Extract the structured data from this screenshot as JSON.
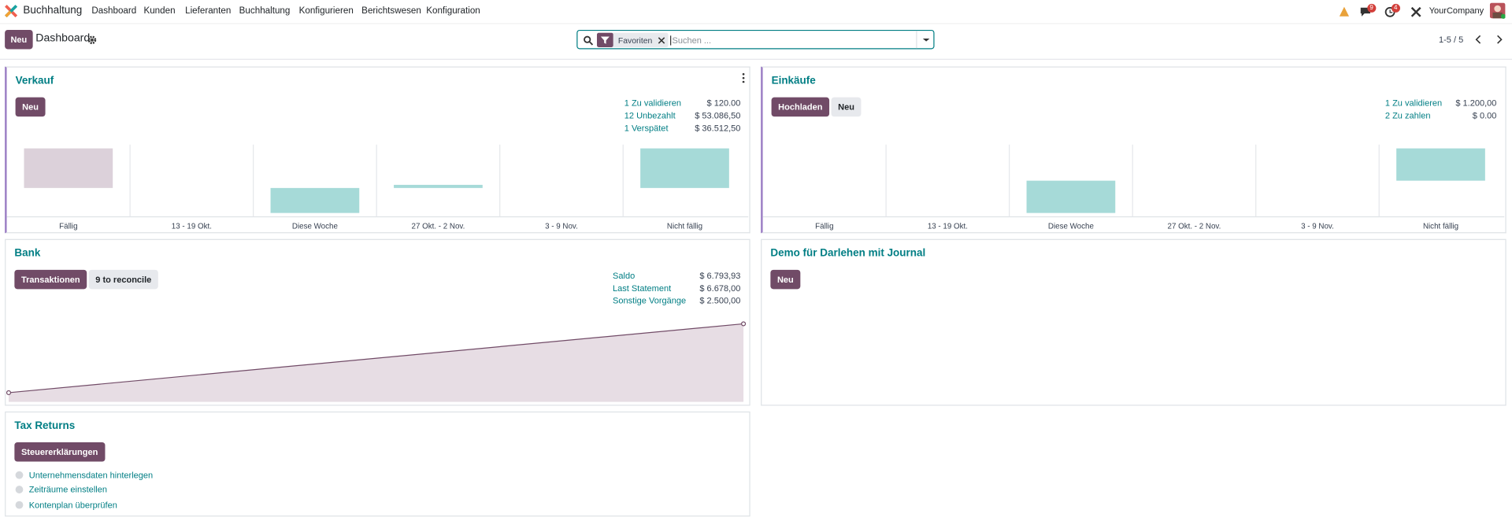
{
  "navbar": {
    "app_name": "Buchhaltung",
    "menu": [
      "Dashboard",
      "Kunden",
      "Lieferanten",
      "Buchhaltung",
      "Konfigurieren",
      "Berichtswesen",
      "Konfiguration"
    ],
    "messages_badge": 9,
    "activities_badge": 4,
    "company": "YourCompany"
  },
  "control_panel": {
    "new_button": "Neu",
    "breadcrumb": "Dashboard",
    "search_facet": "Favoriten",
    "search_placeholder": "Suchen ...",
    "pager": "1-5 / 5"
  },
  "cards": [
    {
      "title": "Verkauf",
      "buttons": [
        "Neu"
      ],
      "stats": [
        {
          "label": "1 Zu validieren",
          "value": "$ 120.00"
        },
        {
          "label": "12 Unbezahlt",
          "value": "$ 53.086,50"
        },
        {
          "label": "1 Verspätet",
          "value": "$ 36.512,50"
        }
      ],
      "chart_data": {
        "type": "bar",
        "categories": [
          "Fällig",
          "13 - 19 Okt.",
          "Diese Woche",
          "27 Okt. - 2 Nov.",
          "3 - 9 Nov.",
          "Nicht fällig"
        ],
        "values": [
          38,
          0,
          -24,
          3,
          0,
          38
        ],
        "colors": [
          "#dcd1da",
          "#a6dad8",
          "#a6dad8",
          "#a6dad8",
          "#a6dad8",
          "#a6dad8"
        ]
      }
    },
    {
      "title": "Einkäufe",
      "buttons": [
        "Hochladen",
        "Neu"
      ],
      "stats": [
        {
          "label": "1 Zu validieren",
          "value": "$ 1.200,00"
        },
        {
          "label": "2 Zu zahlen",
          "value": "$ 0.00"
        }
      ],
      "chart_data": {
        "type": "bar",
        "categories": [
          "Fällig",
          "13 - 19 Okt.",
          "Diese Woche",
          "27 Okt. - 2 Nov.",
          "3 - 9 Nov.",
          "Nicht fällig"
        ],
        "values": [
          0,
          0,
          -32,
          0,
          0,
          32
        ],
        "colors": [
          "#dcd1da",
          "#a6dad8",
          "#a6dad8",
          "#a6dad8",
          "#a6dad8",
          "#a6dad8"
        ]
      }
    },
    {
      "title": "Bank",
      "buttons": [
        "Transaktionen",
        "9 to reconcile"
      ],
      "stats": [
        {
          "label": "Saldo",
          "value": "$ 6.793,93"
        },
        {
          "label": "Last Statement",
          "value": "$ 6.678,00"
        },
        {
          "label": "Sonstige Vorgänge",
          "value": "$ 2.500,00"
        }
      ],
      "chart_data": {
        "type": "line",
        "values": [
          800,
          6800
        ],
        "color": "#714b67",
        "fill": "#e7dde4"
      }
    },
    {
      "title": "Demo für Darlehen mit Journal",
      "buttons": [
        "Neu"
      ]
    },
    {
      "title": "Tax Returns",
      "buttons": [
        "Steuererklärungen"
      ],
      "steps": [
        "Unternehmensdaten hinterlegen",
        "Zeiträume einstellen",
        "Kontenplan überprüfen"
      ]
    }
  ]
}
